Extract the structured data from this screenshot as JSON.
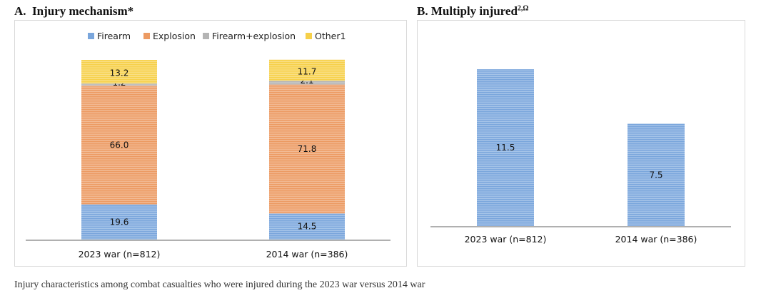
{
  "panel_a": {
    "prefix": "A.",
    "title": "Injury mechanism*"
  },
  "panel_b": {
    "prefix": "B.",
    "title": "Multiply injured",
    "superscript": "2,Ω"
  },
  "caption": "Injury characteristics among combat casualties who were injured during the 2023 war versus 2014 war",
  "colors": {
    "firearm": "#7aa6dc",
    "explosion": "#ec9a62",
    "firearm_explosion": "#b4b4b4",
    "other": "#f6d04a",
    "axis": "#b0b0b0"
  },
  "chart_data": [
    {
      "type": "bar",
      "stacked": true,
      "title": "A. Injury mechanism*",
      "categories": [
        "2023 war (n=812)",
        "2014 war (n=386)"
      ],
      "series": [
        {
          "name": "Firearm",
          "values": [
            19.6,
            14.5
          ]
        },
        {
          "name": "Explosion",
          "values": [
            66.0,
            71.8
          ]
        },
        {
          "name": "Firearm+explosion",
          "values": [
            1.2,
            2.1
          ]
        },
        {
          "name": "Other1",
          "values": [
            13.2,
            11.7
          ]
        }
      ],
      "value_labels": [
        [
          "19.6",
          "66.0",
          "1.2",
          "13.2"
        ],
        [
          "14.5",
          "71.8",
          "2.1",
          "11.7"
        ]
      ],
      "ylim": [
        0,
        100
      ],
      "legend": "top",
      "grid": false
    },
    {
      "type": "bar",
      "title": "B. Multiply injured2,Ω",
      "categories": [
        "2023 war (n=812)",
        "2014 war (n=386)"
      ],
      "values": [
        11.5,
        7.5
      ],
      "value_labels": [
        "11.5",
        "7.5"
      ],
      "ylim": [
        0,
        12.5
      ],
      "legend": "none",
      "grid": false
    }
  ]
}
